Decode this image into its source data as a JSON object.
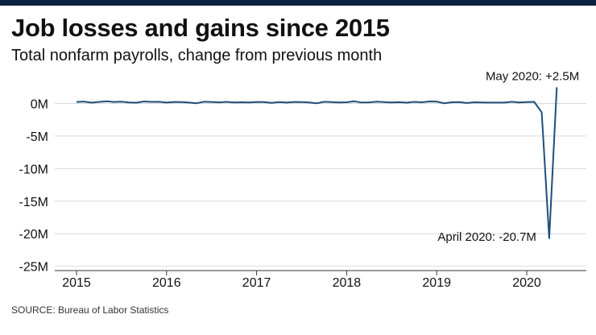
{
  "title": "Job losses and gains since 2015",
  "subtitle": "Total nonfarm payrolls, change from previous month",
  "source": "SOURCE: Bureau of Labor Statistics",
  "colors": {
    "line": "#1f4e79",
    "topbar": "#0c2340",
    "grid": "#d9d9d9",
    "axis": "#333333"
  },
  "chart_data": {
    "type": "line",
    "title": "Job losses and gains since 2015",
    "subtitle": "Total nonfarm payrolls, change from previous month",
    "xlabel": "",
    "ylabel": "",
    "unit": "millions of jobs",
    "xlim": [
      "2015-01",
      "2020-06"
    ],
    "ylim": [
      -25,
      2.5
    ],
    "grid": true,
    "legend": "none",
    "y_ticks": [
      {
        "value": 0,
        "label": "0M"
      },
      {
        "value": -5,
        "label": "-5M"
      },
      {
        "value": -10,
        "label": "-10M"
      },
      {
        "value": -15,
        "label": "-15M"
      },
      {
        "value": -20,
        "label": "-20M"
      },
      {
        "value": -25,
        "label": "-25M"
      }
    ],
    "x_ticks": [
      "2015",
      "2016",
      "2017",
      "2018",
      "2019",
      "2020"
    ],
    "x": [
      "2015-01",
      "2015-02",
      "2015-03",
      "2015-04",
      "2015-05",
      "2015-06",
      "2015-07",
      "2015-08",
      "2015-09",
      "2015-10",
      "2015-11",
      "2015-12",
      "2016-01",
      "2016-02",
      "2016-03",
      "2016-04",
      "2016-05",
      "2016-06",
      "2016-07",
      "2016-08",
      "2016-09",
      "2016-10",
      "2016-11",
      "2016-12",
      "2017-01",
      "2017-02",
      "2017-03",
      "2017-04",
      "2017-05",
      "2017-06",
      "2017-07",
      "2017-08",
      "2017-09",
      "2017-10",
      "2017-11",
      "2017-12",
      "2018-01",
      "2018-02",
      "2018-03",
      "2018-04",
      "2018-05",
      "2018-06",
      "2018-07",
      "2018-08",
      "2018-09",
      "2018-10",
      "2018-11",
      "2018-12",
      "2019-01",
      "2019-02",
      "2019-03",
      "2019-04",
      "2019-05",
      "2019-06",
      "2019-07",
      "2019-08",
      "2019-09",
      "2019-10",
      "2019-11",
      "2019-12",
      "2020-01",
      "2020-02",
      "2020-03",
      "2020-04",
      "2020-05"
    ],
    "series": [
      {
        "values": [
          0.23,
          0.3,
          0.12,
          0.25,
          0.33,
          0.23,
          0.28,
          0.15,
          0.12,
          0.31,
          0.25,
          0.26,
          0.14,
          0.24,
          0.22,
          0.13,
          0.04,
          0.27,
          0.24,
          0.17,
          0.25,
          0.16,
          0.18,
          0.16,
          0.23,
          0.22,
          0.1,
          0.21,
          0.14,
          0.23,
          0.21,
          0.16,
          0.02,
          0.26,
          0.22,
          0.15,
          0.18,
          0.33,
          0.15,
          0.17,
          0.27,
          0.21,
          0.16,
          0.2,
          0.12,
          0.25,
          0.18,
          0.31,
          0.3,
          0.02,
          0.19,
          0.22,
          0.08,
          0.19,
          0.16,
          0.13,
          0.14,
          0.13,
          0.26,
          0.15,
          0.21,
          0.25,
          -1.37,
          -20.7,
          2.5
        ]
      }
    ],
    "annotations": [
      {
        "x": "2020-05",
        "y": 2.5,
        "text": "May 2020: +2.5M"
      },
      {
        "x": "2020-04",
        "y": -20.7,
        "text": "April 2020: -20.7M"
      }
    ]
  }
}
